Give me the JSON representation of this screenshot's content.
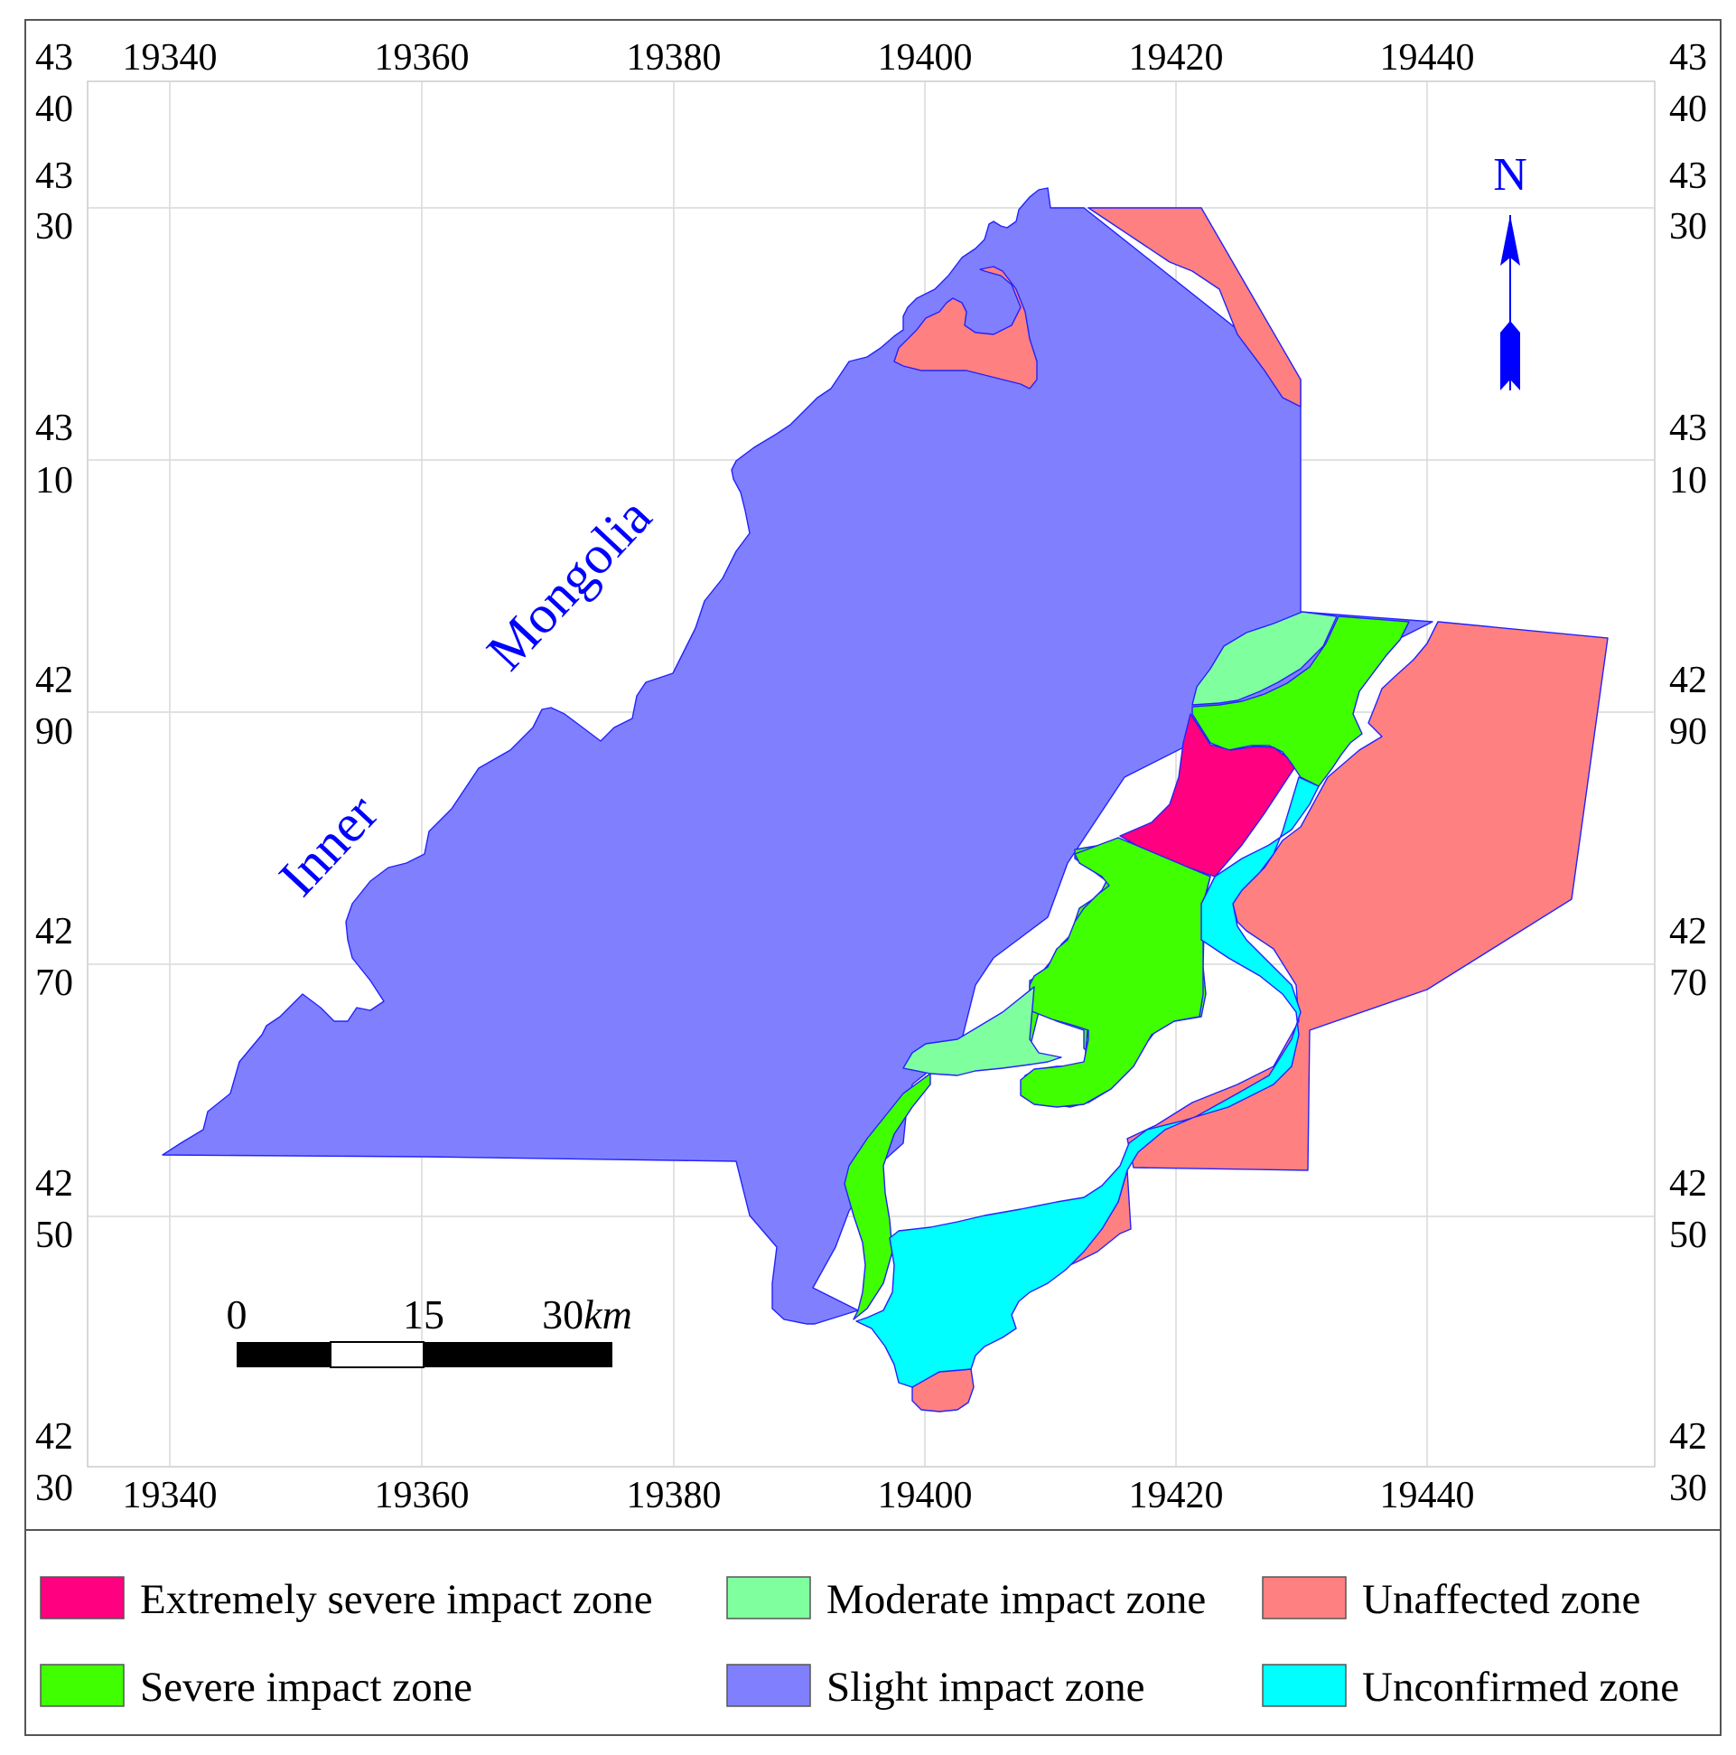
{
  "map": {
    "x_ticks": [
      "19340",
      "19360",
      "19380",
      "19400",
      "19420",
      "19440"
    ],
    "y_ticks_top": [
      "43",
      "43",
      "43",
      "42",
      "42",
      "42",
      "42"
    ],
    "y_ticks_bottom": [
      "40",
      "30",
      "10",
      "90",
      "70",
      "50",
      "30"
    ],
    "place_label_1": "Inner",
    "place_label_2": "Mongolia",
    "north_label": "N",
    "scale": {
      "v0": "0",
      "v1": "15",
      "v2": "30",
      "unit": "km"
    }
  },
  "legend": {
    "items": [
      {
        "label": "Extremely severe impact zone",
        "color": "#ff0080"
      },
      {
        "label": "Moderate impact zone",
        "color": "#80ff9f"
      },
      {
        "label": "Unaffected zone",
        "color": "#ff8080"
      },
      {
        "label": "Severe impact zone",
        "color": "#40ff00"
      },
      {
        "label": "Slight impact zone",
        "color": "#8080ff"
      },
      {
        "label": "Unconfirmed zone",
        "color": "#00ffff"
      }
    ]
  },
  "colors": {
    "extremely_severe": "#ff0080",
    "severe": "#40ff00",
    "moderate": "#80ff9f",
    "slight": "#8080ff",
    "unconfirmed": "#00ffff",
    "unaffected": "#ff8080",
    "label_blue": "#0000ff",
    "grid": "#d9d9d9"
  }
}
